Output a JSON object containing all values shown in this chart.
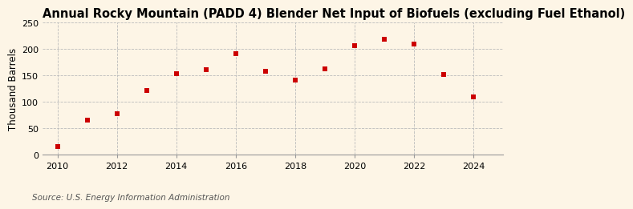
{
  "title": "Annual Rocky Mountain (PADD 4) Blender Net Input of Biofuels (excluding Fuel Ethanol)",
  "ylabel": "Thousand Barrels",
  "source": "Source: U.S. Energy Information Administration",
  "years": [
    2010,
    2011,
    2012,
    2013,
    2014,
    2015,
    2016,
    2017,
    2018,
    2019,
    2020,
    2021,
    2022,
    2023,
    2024
  ],
  "values": [
    15,
    65,
    78,
    122,
    153,
    161,
    192,
    158,
    141,
    162,
    206,
    218,
    210,
    152,
    110
  ],
  "marker_color": "#cc0000",
  "marker": "s",
  "marker_size": 4,
  "background_color": "#fdf5e6",
  "grid_color": "#bbbbbb",
  "ylim": [
    0,
    250
  ],
  "yticks": [
    0,
    50,
    100,
    150,
    200,
    250
  ],
  "xticks": [
    2010,
    2012,
    2014,
    2016,
    2018,
    2020,
    2022,
    2024
  ],
  "xlim": [
    2009.5,
    2025.0
  ],
  "title_fontsize": 10.5,
  "ylabel_fontsize": 8.5,
  "source_fontsize": 7.5,
  "tick_fontsize": 8
}
